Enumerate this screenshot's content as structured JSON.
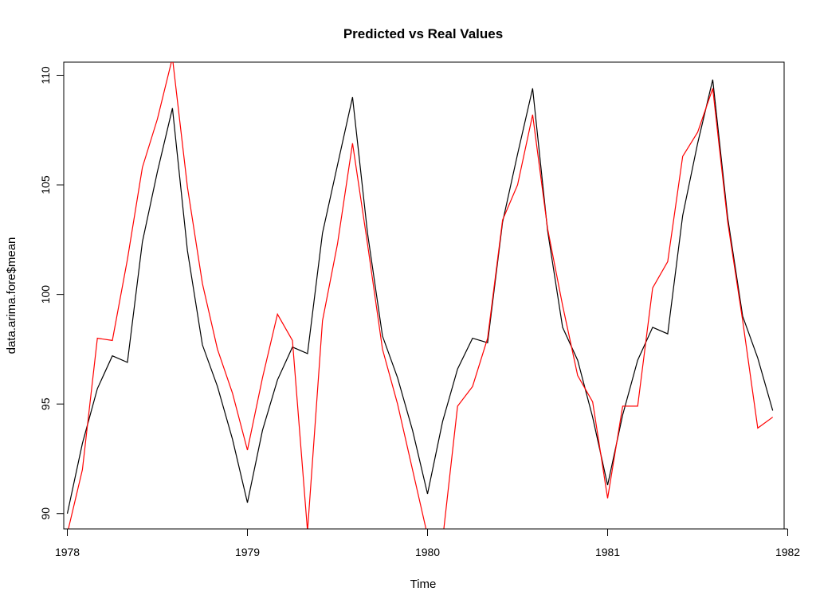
{
  "chart_data": {
    "type": "line",
    "title": "Predicted vs Real Values",
    "xlabel": "Time",
    "ylabel": "data.arima.fore$mean",
    "xlim": [
      1977.98,
      1981.98
    ],
    "ylim": [
      89.3,
      110.6
    ],
    "x_ticks": [
      "1978",
      "1979",
      "1980",
      "1981",
      "1982"
    ],
    "y_ticks": [
      "90",
      "95",
      "100",
      "105",
      "110"
    ],
    "grid": false,
    "legend": "none",
    "frequency": 12,
    "start": 1978.0,
    "series": [
      {
        "color": "#000000",
        "values": [
          90.0,
          93.2,
          95.7,
          97.2,
          96.9,
          102.4,
          105.6,
          108.5,
          102.0,
          97.7,
          95.8,
          93.4,
          90.5,
          93.8,
          96.1,
          97.6,
          97.3,
          102.8,
          105.9,
          109.0,
          102.8,
          98.1,
          96.2,
          93.8,
          90.9,
          94.2,
          96.6,
          98.0,
          97.8,
          103.3,
          106.4,
          109.4,
          102.9,
          98.5,
          97.0,
          94.4,
          91.3,
          94.5,
          97.0,
          98.5,
          98.2,
          103.6,
          106.9,
          109.8,
          103.5,
          99.0,
          97.1,
          94.7
        ]
      },
      {
        "color": "#ff0000",
        "values": [
          89.1,
          92.0,
          98.0,
          97.9,
          101.6,
          105.8,
          108.0,
          110.8,
          104.9,
          100.5,
          97.5,
          95.5,
          92.9,
          96.2,
          99.1,
          97.9,
          89.2,
          98.8,
          102.3,
          106.9,
          102.3,
          97.5,
          95.0,
          92.0,
          89.0,
          88.8,
          94.9,
          95.8,
          98.0,
          103.4,
          105.0,
          108.2,
          103.0,
          99.5,
          96.3,
          95.1,
          90.7,
          94.9,
          94.9,
          100.3,
          101.5,
          106.3,
          107.4,
          109.4,
          103.3,
          98.8,
          93.9,
          94.4
        ]
      }
    ]
  }
}
